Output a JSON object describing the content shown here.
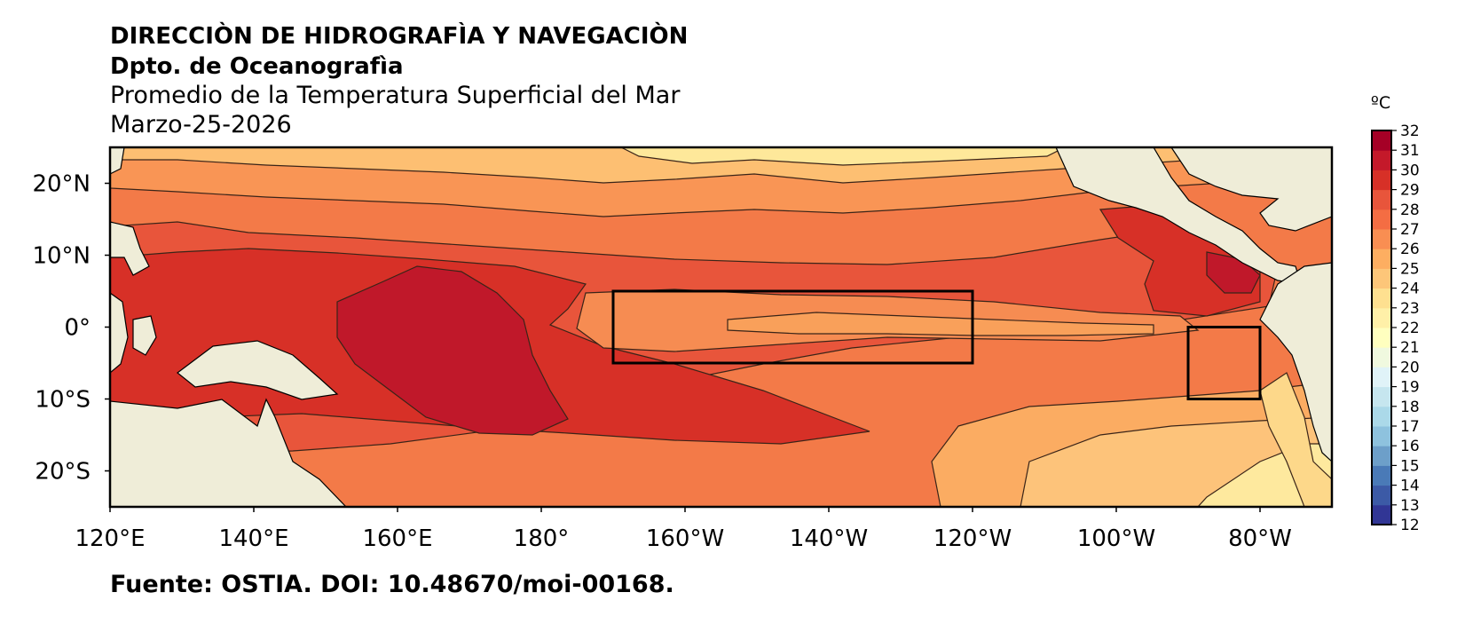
{
  "header": {
    "line1": "DIRECCIÒN DE HIDROGRAFÌA Y NAVEGACIÒN",
    "line2": "Dpto. de Oceanografìa",
    "line3": "Promedio de la Temperatura Superficial del Mar",
    "line4": "Marzo-25-2026"
  },
  "footer": {
    "source": "Fuente: OSTIA. DOI: 10.48670/moi-00168."
  },
  "map": {
    "lon_range": [
      120,
      290
    ],
    "lat_range": [
      -25,
      25
    ],
    "lon_ticks": [
      {
        "value": 120,
        "label": "120°E"
      },
      {
        "value": 140,
        "label": "140°E"
      },
      {
        "value": 160,
        "label": "160°E"
      },
      {
        "value": 180,
        "label": "180°"
      },
      {
        "value": 200,
        "label": "160°W"
      },
      {
        "value": 220,
        "label": "140°W"
      },
      {
        "value": 240,
        "label": "120°W"
      },
      {
        "value": 260,
        "label": "100°W"
      },
      {
        "value": 280,
        "label": "80°W"
      }
    ],
    "lat_ticks": [
      {
        "value": 20,
        "label": "20°N"
      },
      {
        "value": 10,
        "label": "10°N"
      },
      {
        "value": 0,
        "label": "0°"
      },
      {
        "value": -10,
        "label": "10°S"
      },
      {
        "value": -20,
        "label": "20°S"
      }
    ],
    "boxes": [
      {
        "name": "nino34-box",
        "lon": [
          190,
          240
        ],
        "lat": [
          -5,
          5
        ]
      },
      {
        "name": "nino12-box",
        "lon": [
          270,
          280
        ],
        "lat": [
          -10,
          0
        ]
      }
    ],
    "land_color": "#efedd8",
    "ocean_base_color": "#f37a48"
  },
  "colorbar": {
    "unit": "ºC",
    "min": 12,
    "max": 32,
    "labels": [
      "12",
      "13",
      "14",
      "15",
      "16",
      "17",
      "18",
      "19",
      "20",
      "21",
      "22",
      "23",
      "24",
      "25",
      "26",
      "27",
      "28",
      "29",
      "30",
      "31",
      "32"
    ],
    "colors": [
      "#313695",
      "#3c5aa6",
      "#4a7ab7",
      "#6d9fc9",
      "#8ec2de",
      "#abd9e9",
      "#c6e6ef",
      "#e0f3f8",
      "#f0f9df",
      "#ffffbf",
      "#fff0a8",
      "#fee090",
      "#fdc679",
      "#fdae61",
      "#f98e52",
      "#f46d43",
      "#e8553b",
      "#d73027",
      "#c4192a",
      "#a50026"
    ]
  }
}
